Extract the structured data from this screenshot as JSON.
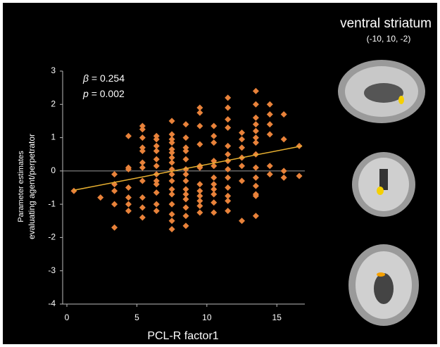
{
  "chart_data": {
    "type": "scatter",
    "title": "ventral striatum",
    "subtitle": "(-10, 10, -2)",
    "xlabel": "PCL-R  factor1",
    "ylabel": [
      "Parameter estimates",
      "evaluating  agent/perpetrator"
    ],
    "annotations": [
      {
        "symbol": "β",
        "text": "= 0.254"
      },
      {
        "symbol": "p",
        "text": "= 0.002"
      }
    ],
    "xlim": [
      0,
      17
    ],
    "xticks": [
      0,
      5,
      10,
      15
    ],
    "ylim": [
      -4,
      3
    ],
    "yticks": [
      -4,
      -3,
      -2,
      -1,
      0,
      1,
      2,
      3
    ],
    "color": "#e8823a",
    "fit_color": "#e8b030",
    "fit": {
      "x": [
        0.5,
        16.8
      ],
      "y": [
        -0.58,
        0.75
      ]
    },
    "x": [
      0.5,
      2.4,
      3.4,
      3.4,
      3.4,
      3.4,
      3.4,
      4.4,
      4.4,
      4.4,
      4.4,
      4.4,
      4.4,
      4.4,
      5.4,
      5.4,
      5.4,
      5.4,
      5.4,
      5.4,
      5.4,
      5.4,
      5.4,
      5.4,
      5.4,
      6.4,
      6.4,
      6.4,
      6.4,
      6.4,
      6.4,
      6.4,
      6.4,
      6.4,
      6.4,
      6.4,
      6.4,
      7.5,
      7.5,
      7.5,
      7.5,
      7.5,
      7.5,
      7.5,
      7.5,
      7.5,
      7.5,
      7.5,
      7.5,
      7.5,
      7.5,
      7.5,
      7.5,
      7.5,
      8.5,
      8.5,
      8.5,
      8.5,
      8.5,
      8.5,
      8.5,
      8.5,
      8.5,
      8.5,
      8.5,
      8.5,
      8.5,
      8.5,
      9.5,
      9.5,
      9.5,
      9.5,
      9.5,
      9.5,
      9.5,
      9.5,
      9.5,
      9.5,
      9.5,
      9.5,
      10.5,
      10.5,
      10.5,
      10.5,
      10.5,
      10.5,
      10.5,
      10.5,
      10.5,
      10.5,
      10.5,
      11.5,
      11.5,
      11.5,
      11.5,
      11.5,
      11.5,
      11.5,
      11.5,
      11.5,
      11.5,
      11.5,
      11.5,
      11.5,
      12.5,
      12.5,
      12.5,
      12.5,
      12.5,
      12.5,
      12.5,
      13.5,
      13.5,
      13.5,
      13.5,
      13.5,
      13.5,
      13.5,
      13.5,
      13.5,
      13.5,
      13.5,
      13.5,
      13.5,
      13.5,
      14.5,
      14.5,
      14.5,
      14.5,
      14.5,
      14.5,
      15.5,
      15.5,
      15.5,
      15.5,
      16.6,
      16.6
    ],
    "values": [
      -0.6,
      -0.8,
      -0.1,
      -0.4,
      -0.6,
      -1.0,
      -1.7,
      1.05,
      0.1,
      0.05,
      -0.5,
      -0.8,
      -1.2,
      -1.0,
      1.35,
      1.25,
      1.0,
      0.7,
      0.6,
      0.25,
      0.1,
      -0.3,
      -0.8,
      -1.1,
      -1.4,
      1.05,
      0.95,
      0.75,
      0.6,
      0.35,
      0.15,
      -0.1,
      -0.3,
      -0.4,
      -0.65,
      -1.0,
      -1.2,
      1.5,
      1.1,
      0.95,
      0.85,
      0.65,
      0.55,
      0.4,
      0.25,
      0.05,
      -0.1,
      -0.3,
      -0.55,
      -0.7,
      -1.0,
      -1.3,
      -1.5,
      -1.75,
      1.4,
      1.0,
      0.7,
      0.6,
      0.35,
      0.05,
      -0.1,
      -0.3,
      -0.55,
      -0.7,
      -0.85,
      -1.1,
      -1.35,
      -1.65,
      1.9,
      1.75,
      1.35,
      0.8,
      0.15,
      0.1,
      -0.4,
      -0.6,
      -0.75,
      -0.9,
      -1.05,
      -1.25,
      1.35,
      1.05,
      0.85,
      0.3,
      0.15,
      -0.2,
      -0.4,
      -0.55,
      -0.7,
      -0.95,
      -1.25,
      2.2,
      1.9,
      1.55,
      1.3,
      0.75,
      0.5,
      0.3,
      0.05,
      -0.2,
      -0.5,
      -0.75,
      -0.9,
      -1.2,
      1.15,
      0.95,
      0.7,
      0.4,
      0.15,
      -0.3,
      -1.5,
      2.4,
      2.0,
      1.6,
      1.4,
      1.2,
      1.0,
      0.85,
      0.5,
      0.1,
      -0.2,
      -0.45,
      -0.7,
      -0.75,
      -1.35,
      2.0,
      1.7,
      1.4,
      1.1,
      0.15,
      -0.1,
      1.7,
      0.95,
      0.0,
      -0.2,
      0.75,
      -0.15
    ]
  }
}
